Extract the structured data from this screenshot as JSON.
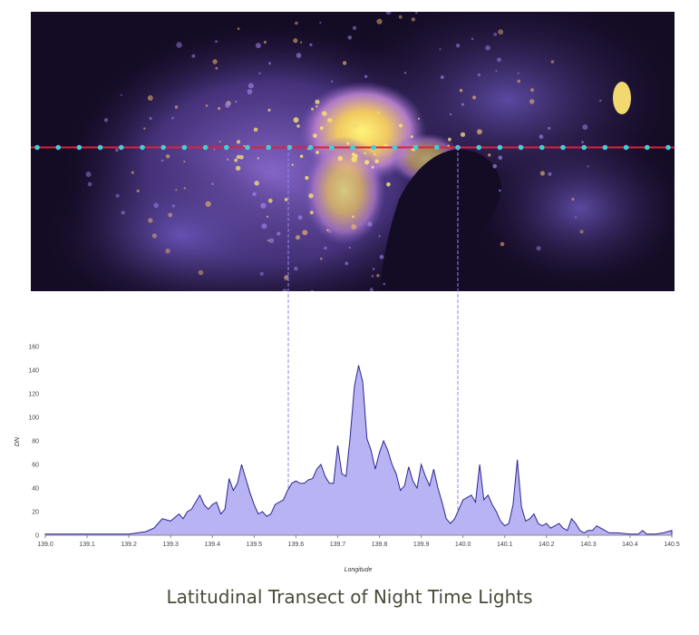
{
  "caption": "Latitudinal Transect of Night Time Lights",
  "map": {
    "description_colors": {
      "background": "#140b24",
      "glow": "#6f56b8",
      "bright": "#f5e96b"
    },
    "transect_color": "#e0203a",
    "marker_color": "#3fd0d8"
  },
  "chart_data": {
    "type": "area",
    "xlabel": "Longitude",
    "ylabel": "DN",
    "xlim": [
      139.0,
      140.5
    ],
    "ylim": [
      0,
      160
    ],
    "xticks": [
      "139.0",
      "139.1",
      "139.2",
      "139.3",
      "139.4",
      "139.5",
      "139.6",
      "139.7",
      "139.8",
      "139.9",
      "140.0",
      "140.1",
      "140.2",
      "140.3",
      "140.4",
      "140.5"
    ],
    "yticks": [
      "0",
      "20",
      "40",
      "60",
      "80",
      "100",
      "120",
      "140",
      "160"
    ],
    "fill_color": "#b8b4f4",
    "line_color": "#2b2590",
    "reference_lines_x": [
      139.58,
      139.99
    ],
    "x": [
      139.0,
      139.1,
      139.2,
      139.24,
      139.26,
      139.27,
      139.28,
      139.3,
      139.31,
      139.32,
      139.33,
      139.34,
      139.35,
      139.37,
      139.38,
      139.39,
      139.4,
      139.41,
      139.42,
      139.43,
      139.44,
      139.45,
      139.46,
      139.47,
      139.48,
      139.49,
      139.5,
      139.51,
      139.52,
      139.53,
      139.54,
      139.55,
      139.56,
      139.57,
      139.58,
      139.59,
      139.6,
      139.61,
      139.62,
      139.63,
      139.64,
      139.65,
      139.66,
      139.67,
      139.68,
      139.69,
      139.7,
      139.71,
      139.72,
      139.73,
      139.74,
      139.75,
      139.76,
      139.77,
      139.78,
      139.79,
      139.8,
      139.81,
      139.82,
      139.83,
      139.84,
      139.85,
      139.86,
      139.87,
      139.88,
      139.89,
      139.9,
      139.91,
      139.92,
      139.93,
      139.94,
      139.95,
      139.96,
      139.97,
      139.98,
      139.99,
      140.0,
      140.01,
      140.02,
      140.03,
      140.04,
      140.05,
      140.06,
      140.07,
      140.08,
      140.09,
      140.1,
      140.11,
      140.12,
      140.13,
      140.14,
      140.15,
      140.16,
      140.17,
      140.18,
      140.19,
      140.2,
      140.21,
      140.22,
      140.23,
      140.24,
      140.25,
      140.26,
      140.27,
      140.28,
      140.29,
      140.3,
      140.31,
      140.32,
      140.33,
      140.35,
      140.37,
      140.4,
      140.42,
      140.43,
      140.44,
      140.46,
      140.48,
      140.5
    ],
    "values": [
      1,
      1,
      1,
      3,
      6,
      10,
      14,
      12,
      15,
      18,
      14,
      20,
      22,
      34,
      26,
      22,
      26,
      28,
      18,
      22,
      48,
      38,
      44,
      60,
      48,
      36,
      26,
      18,
      20,
      16,
      18,
      26,
      28,
      30,
      38,
      44,
      46,
      44,
      44,
      47,
      48,
      56,
      60,
      50,
      44,
      44,
      76,
      52,
      50,
      84,
      126,
      144,
      130,
      82,
      72,
      56,
      70,
      80,
      72,
      60,
      52,
      38,
      42,
      58,
      46,
      40,
      60,
      50,
      42,
      56,
      40,
      28,
      14,
      10,
      14,
      22,
      30,
      32,
      34,
      28,
      60,
      30,
      34,
      26,
      20,
      12,
      8,
      10,
      26,
      64,
      24,
      12,
      14,
      18,
      10,
      8,
      10,
      6,
      8,
      10,
      6,
      4,
      14,
      10,
      4,
      2,
      4,
      4,
      8,
      6,
      2,
      2,
      1,
      1,
      4,
      1,
      1,
      2,
      4
    ]
  }
}
